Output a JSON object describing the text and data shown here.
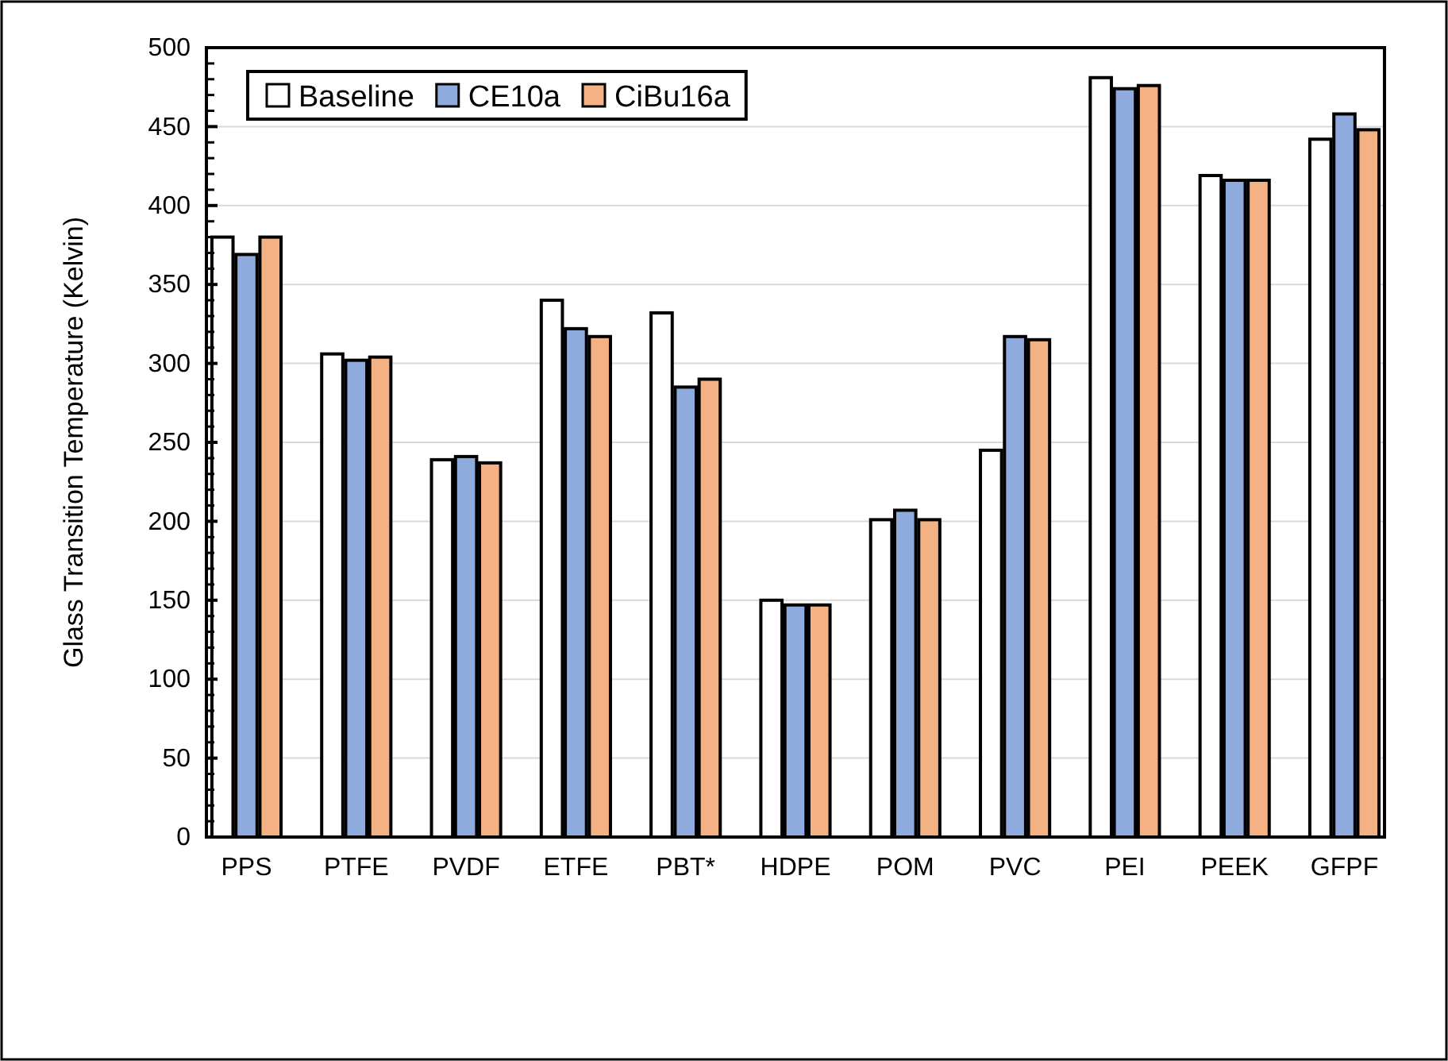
{
  "chart_data": {
    "type": "bar",
    "ylabel": "Glass Transition Temperature (Kelvin)",
    "categories": [
      "PPS",
      "PTFE",
      "PVDF",
      "ETFE",
      "PBT*",
      "HDPE",
      "POM",
      "PVC",
      "PEI",
      "PEEK",
      "GFPF"
    ],
    "series": [
      {
        "name": "Baseline",
        "color": "#ffffff",
        "values": [
          380,
          306,
          239,
          340,
          332,
          150,
          201,
          245,
          481,
          419,
          442
        ]
      },
      {
        "name": "CE10a",
        "color": "#8faadc",
        "values": [
          369,
          302,
          241,
          322,
          285,
          147,
          207,
          317,
          474,
          416,
          458
        ]
      },
      {
        "name": "CiBu16a",
        "color": "#f4b183",
        "values": [
          380,
          304,
          237,
          317,
          290,
          147,
          201,
          315,
          476,
          416,
          448
        ]
      }
    ],
    "ylim": [
      0,
      500
    ],
    "yticks": [
      0,
      50,
      100,
      150,
      200,
      250,
      300,
      350,
      400,
      450,
      500
    ],
    "grid": "y",
    "legend": "top left"
  }
}
